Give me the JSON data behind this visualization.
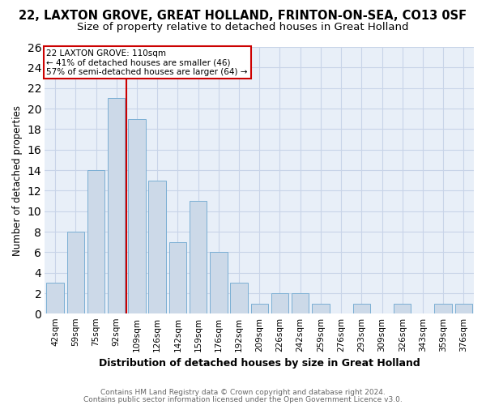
{
  "title": "22, LAXTON GROVE, GREAT HOLLAND, FRINTON-ON-SEA, CO13 0SF",
  "subtitle": "Size of property relative to detached houses in Great Holland",
  "xlabel": "Distribution of detached houses by size in Great Holland",
  "ylabel": "Number of detached properties",
  "bin_labels": [
    "42sqm",
    "59sqm",
    "75sqm",
    "92sqm",
    "109sqm",
    "126sqm",
    "142sqm",
    "159sqm",
    "176sqm",
    "192sqm",
    "209sqm",
    "226sqm",
    "242sqm",
    "259sqm",
    "276sqm",
    "293sqm",
    "309sqm",
    "326sqm",
    "343sqm",
    "359sqm",
    "376sqm"
  ],
  "values": [
    3,
    8,
    14,
    21,
    19,
    13,
    7,
    11,
    6,
    3,
    1,
    2,
    2,
    1,
    0,
    1,
    0,
    1,
    0,
    1,
    1
  ],
  "bar_color": "#ccd9e8",
  "bar_edgecolor": "#7bafd4",
  "vline_color": "#cc0000",
  "annotation_line1": "22 LAXTON GROVE: 110sqm",
  "annotation_line2": "← 41% of detached houses are smaller (46)",
  "annotation_line3": "57% of semi-detached houses are larger (64) →",
  "annotation_box_color": "#ffffff",
  "annotation_box_edgecolor": "#cc0000",
  "footer1": "Contains HM Land Registry data © Crown copyright and database right 2024.",
  "footer2": "Contains public sector information licensed under the Open Government Licence v3.0.",
  "grid_color": "#c8d4e8",
  "background_color": "#e8eff8",
  "ylim": [
    0,
    26
  ],
  "yticks": [
    0,
    2,
    4,
    6,
    8,
    10,
    12,
    14,
    16,
    18,
    20,
    22,
    24,
    26
  ]
}
